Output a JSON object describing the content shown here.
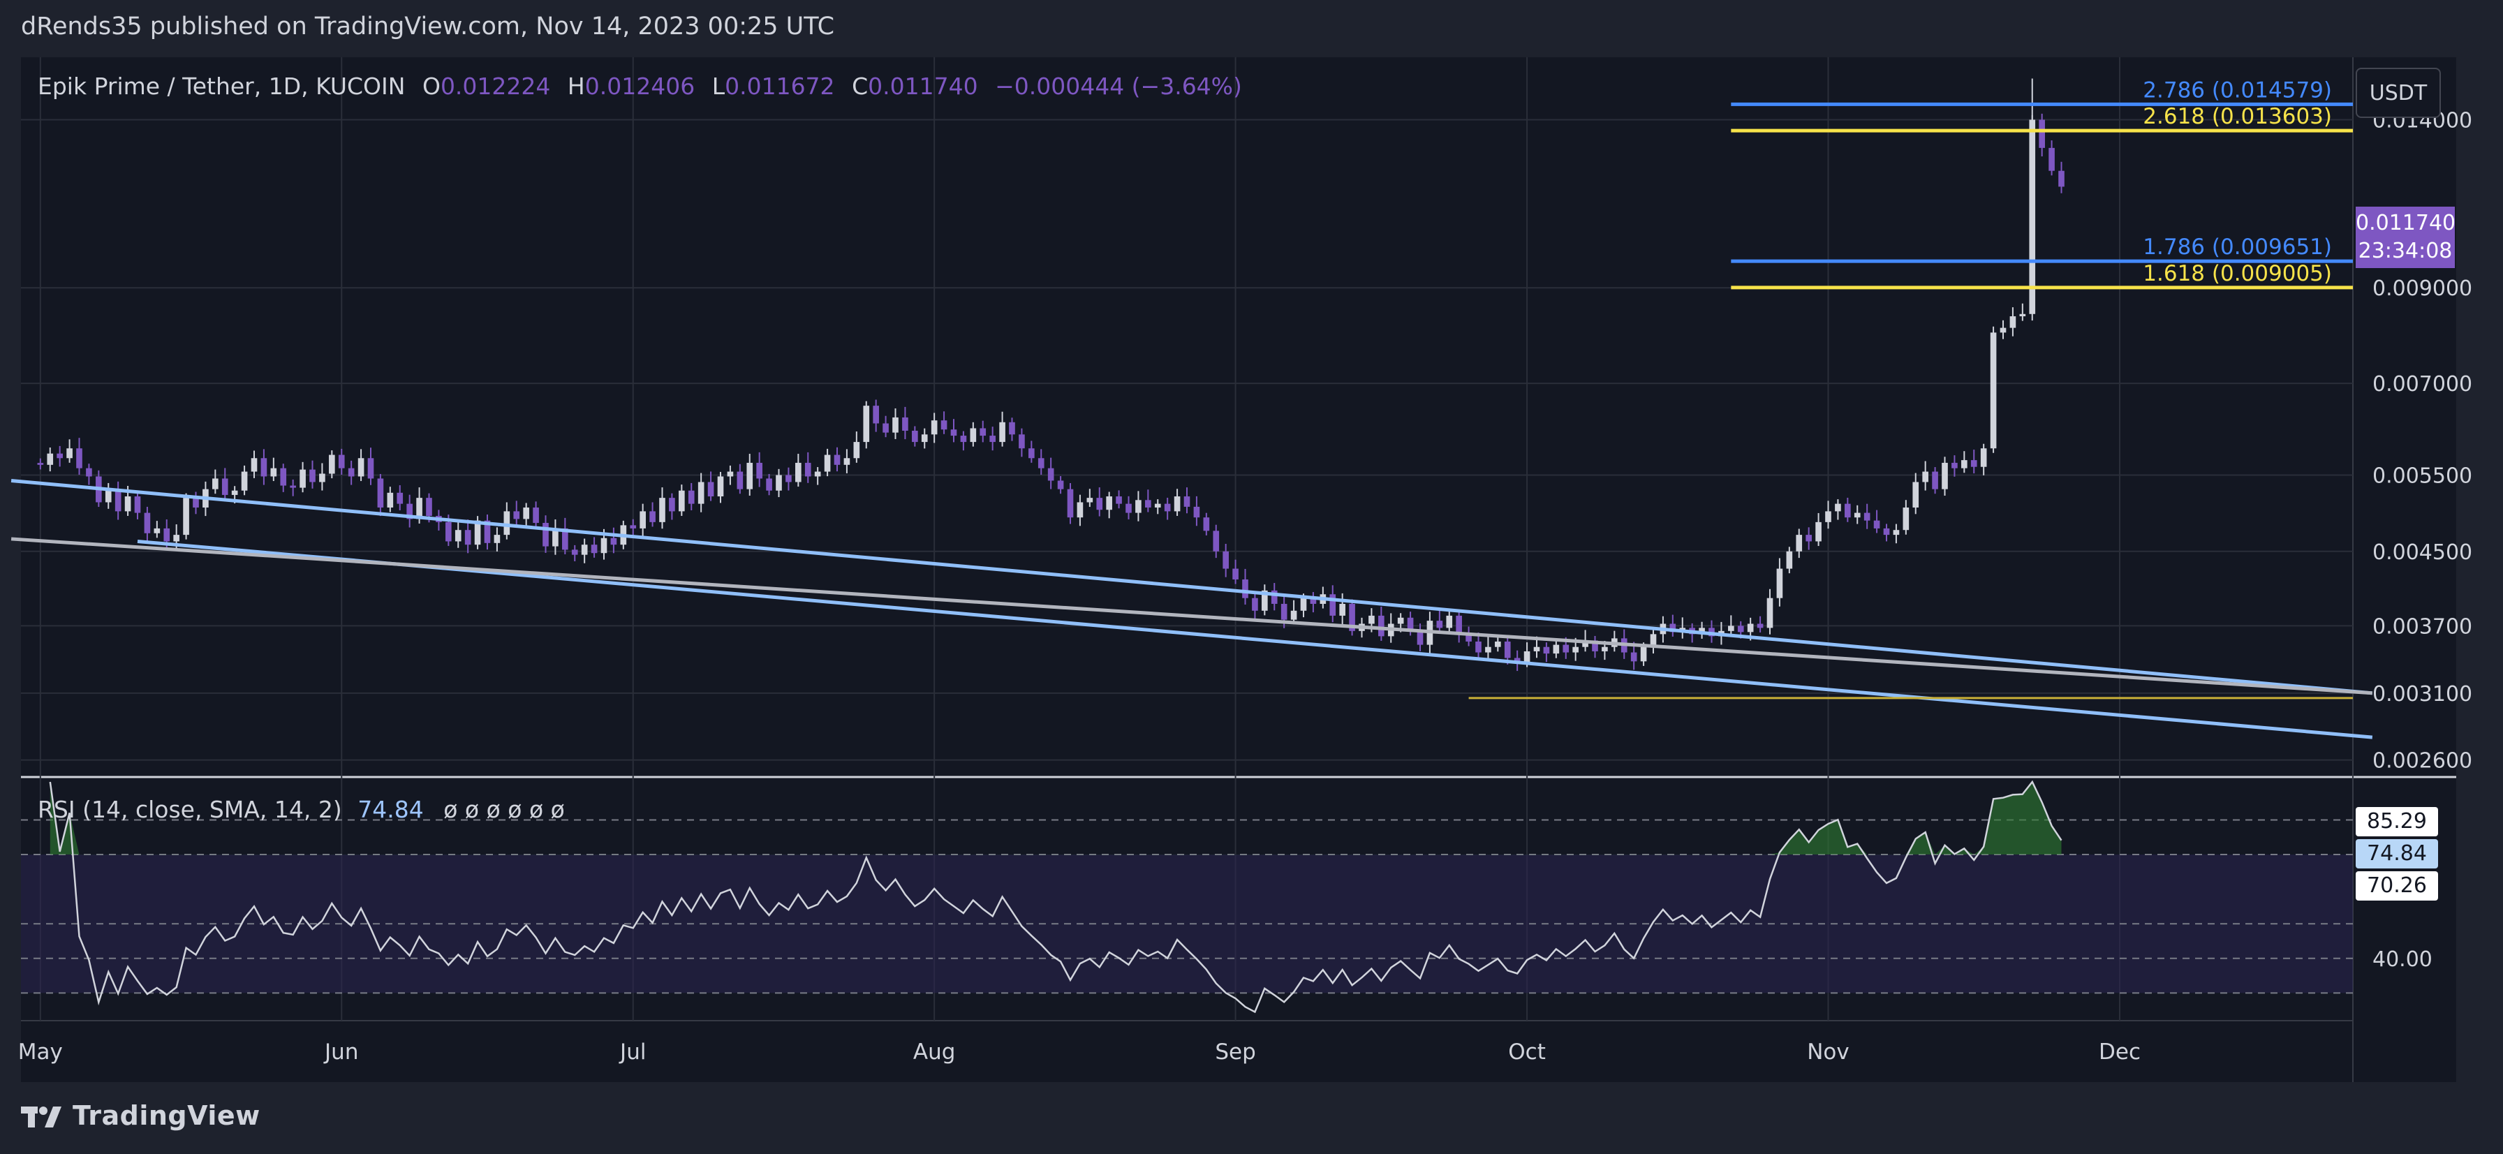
{
  "header": {
    "published": "dRends35 published on TradingView.com, Nov 14, 2023 00:25 UTC"
  },
  "legend": {
    "symbol": "Epik Prime / Tether, 1D, KUCOIN",
    "o_label": "O",
    "o_value": "0.012224",
    "h_label": "H",
    "h_value": "0.012406",
    "l_label": "L",
    "l_value": "0.011672",
    "c_label": "C",
    "c_value": "0.011740",
    "change": "−0.000444 (−3.64%)"
  },
  "currency": "USDT",
  "last_price": {
    "price": "0.011740",
    "countdown": "23:34:08"
  },
  "rsi_legend": {
    "label": "RSI (14, close, SMA, 14, 2)",
    "value": "74.84",
    "empty_marks": "ø  ø  ø  ø  ø  ø"
  },
  "rsi_tags": [
    {
      "text": "85.29",
      "bg": "#ffffff",
      "fg": "#131722"
    },
    {
      "text": "74.84",
      "bg": "#b8d7f7",
      "fg": "#131722"
    },
    {
      "text": "70.26",
      "bg": "#ffffff",
      "fg": "#131722"
    }
  ],
  "brand": "TradingView",
  "colors": {
    "up": "#d1d4dc",
    "down": "#7e57c2",
    "trendline": "#90bff9",
    "grey_line": "#b2b5be",
    "fib_blue": "#2962ff",
    "fib_blue_light": "#448aff",
    "fib_yellow": "#f7e34a",
    "rsi_line": "#d1d4dc",
    "rsi_band": "#2a2450",
    "overbought_fill": "#2e7d32"
  },
  "chart_data": {
    "type": "candlestick",
    "title": "Epik Prime / Tether, 1D, KUCOIN",
    "x_axis": {
      "labels": [
        "May",
        "Jun",
        "Jul",
        "Aug",
        "Sep",
        "Oct",
        "Nov",
        "Dec"
      ],
      "label_days": [
        0,
        31,
        61,
        92,
        123,
        153,
        184,
        214
      ],
      "range_days": [
        -2,
        238
      ]
    },
    "y_axis": {
      "scale": "log",
      "ticks": [
        "0.014000",
        "0.009000",
        "0.007000",
        "0.005500",
        "0.004500",
        "0.003700",
        "0.003100",
        "0.002600"
      ],
      "tick_values": [
        0.014,
        0.009,
        0.007,
        0.0055,
        0.0045,
        0.0037,
        0.0031,
        0.0026
      ],
      "range": [
        0.0025,
        0.0165
      ]
    },
    "closes": [
      0.00565,
      0.00582,
      0.00575,
      0.0059,
      0.0056,
      0.00548,
      0.00512,
      0.00528,
      0.005,
      0.0052,
      0.00498,
      0.00472,
      0.00478,
      0.00462,
      0.0047,
      0.00518,
      0.00505,
      0.0053,
      0.00545,
      0.00522,
      0.00528,
      0.00555,
      0.00575,
      0.00548,
      0.0056,
      0.00535,
      0.00532,
      0.00558,
      0.0054,
      0.00552,
      0.0058,
      0.0056,
      0.00548,
      0.00575,
      0.00545,
      0.00505,
      0.00525,
      0.0051,
      0.0049,
      0.00518,
      0.00494,
      0.00486,
      0.00462,
      0.00476,
      0.00458,
      0.00488,
      0.0046,
      0.0047,
      0.005,
      0.0049,
      0.00505,
      0.00485,
      0.00456,
      0.00478,
      0.00452,
      0.00446,
      0.00458,
      0.00448,
      0.00466,
      0.00458,
      0.00482,
      0.00478,
      0.005,
      0.00486,
      0.00518,
      0.005,
      0.00528,
      0.0051,
      0.0054,
      0.0052,
      0.00548,
      0.00555,
      0.0053,
      0.00568,
      0.00545,
      0.00528,
      0.0055,
      0.0054,
      0.00568,
      0.00548,
      0.00555,
      0.0058,
      0.00565,
      0.00575,
      0.006,
      0.0066,
      0.0063,
      0.00615,
      0.0064,
      0.00618,
      0.006,
      0.00612,
      0.00635,
      0.0062,
      0.0061,
      0.006,
      0.00622,
      0.0061,
      0.006,
      0.00632,
      0.00612,
      0.0059,
      0.00575,
      0.0056,
      0.00542,
      0.0053,
      0.00492,
      0.00512,
      0.00518,
      0.00502,
      0.0052,
      0.0051,
      0.00498,
      0.00515,
      0.00505,
      0.0051,
      0.005,
      0.0052,
      0.00506,
      0.00492,
      0.00475,
      0.0045,
      0.0043,
      0.00418,
      0.00398,
      0.00385,
      0.00406,
      0.00392,
      0.00376,
      0.00385,
      0.00398,
      0.00392,
      0.00402,
      0.0038,
      0.00392,
      0.00365,
      0.00372,
      0.0038,
      0.0036,
      0.00372,
      0.00378,
      0.00365,
      0.00352,
      0.00375,
      0.00368,
      0.0038,
      0.00362,
      0.00355,
      0.00345,
      0.0035,
      0.00355,
      0.0034,
      0.00336,
      0.00346,
      0.0035,
      0.00344,
      0.00352,
      0.00345,
      0.0035,
      0.00356,
      0.00346,
      0.0035,
      0.00358,
      0.00345,
      0.00337,
      0.0035,
      0.00362,
      0.00372,
      0.00364,
      0.00368,
      0.00362,
      0.00368,
      0.0036,
      0.00365,
      0.0037,
      0.00364,
      0.00372,
      0.00368,
      0.00398,
      0.0043,
      0.0045,
      0.0047,
      0.00462,
      0.00486,
      0.005,
      0.0051,
      0.00492,
      0.00498,
      0.00488,
      0.00478,
      0.0047,
      0.00476,
      0.00505,
      0.0054,
      0.00555,
      0.0053,
      0.00568,
      0.0056,
      0.00572,
      0.00562,
      0.0059,
      0.008,
      0.0081,
      0.00835,
      0.0084,
      0.014,
      0.013,
      0.01224,
      0.01174
    ],
    "trendlines": [
      {
        "name": "descending-resistance",
        "from": [
          -3,
          0.00542
        ],
        "to": [
          240,
          0.0031
        ]
      },
      {
        "name": "lower-support",
        "from": [
          10,
          0.00462
        ],
        "to": [
          240,
          0.00276
        ]
      },
      {
        "name": "grey-support",
        "from": [
          -3,
          0.00465
        ],
        "to": [
          240,
          0.0031
        ]
      }
    ],
    "horizontal_lines": [
      {
        "name": "support-0.0031",
        "value": 0.00306,
        "from_day": 147
      }
    ],
    "fib_levels": [
      {
        "ratio": "2.786",
        "price": "0.014579",
        "label": "2.786 (0.014579)",
        "value": 0.014579,
        "color": "blue"
      },
      {
        "ratio": "2.618",
        "price": "0.013603",
        "label": "2.618 (0.013603)",
        "value": 0.013603,
        "color": "yellow"
      },
      {
        "ratio": "1.786",
        "price": "0.009651",
        "label": "1.786 (0.009651)",
        "value": 0.009651,
        "color": "blue"
      },
      {
        "ratio": "1.618",
        "price": "0.009005",
        "label": "1.618 (0.009005)",
        "value": 0.009005,
        "color": "yellow"
      }
    ],
    "fib_from_day": 174,
    "rsi": {
      "title": "RSI (14, close, SMA, 14, 2)",
      "current": 74.84,
      "range": [
        22,
        92
      ],
      "levels": [
        80,
        70,
        50,
        40,
        30
      ],
      "tick_labels": [
        "40.00"
      ],
      "tick_values": [
        40
      ]
    }
  }
}
